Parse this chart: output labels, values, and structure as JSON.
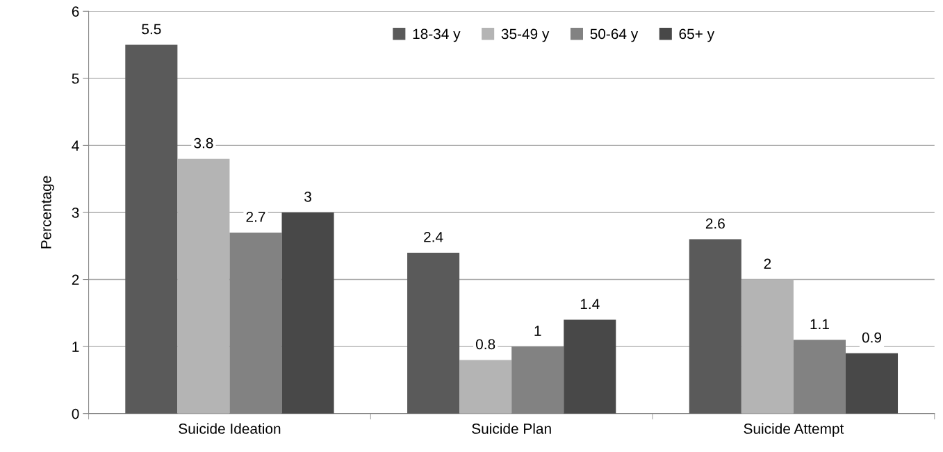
{
  "chart_data": {
    "type": "bar",
    "ylabel": "Percentage",
    "categories": [
      "Suicide Ideation",
      "Suicide Plan",
      "Suicide Attempt"
    ],
    "series": [
      {
        "name": "18-34 y",
        "color": "#5a5a5a",
        "values": [
          5.5,
          2.4,
          2.6
        ]
      },
      {
        "name": "35-49 y",
        "color": "#b4b4b4",
        "values": [
          3.8,
          0.8,
          2
        ]
      },
      {
        "name": "50-64 y",
        "color": "#828282",
        "values": [
          2.7,
          1,
          1.1
        ]
      },
      {
        "name": "65+ y",
        "color": "#484848",
        "values": [
          3,
          1.4,
          0.9
        ]
      }
    ],
    "ylim": [
      0,
      6
    ],
    "yticks": [
      0,
      1,
      2,
      3,
      4,
      5,
      6
    ],
    "grid": "y",
    "legend": "top",
    "data_labels": true
  }
}
